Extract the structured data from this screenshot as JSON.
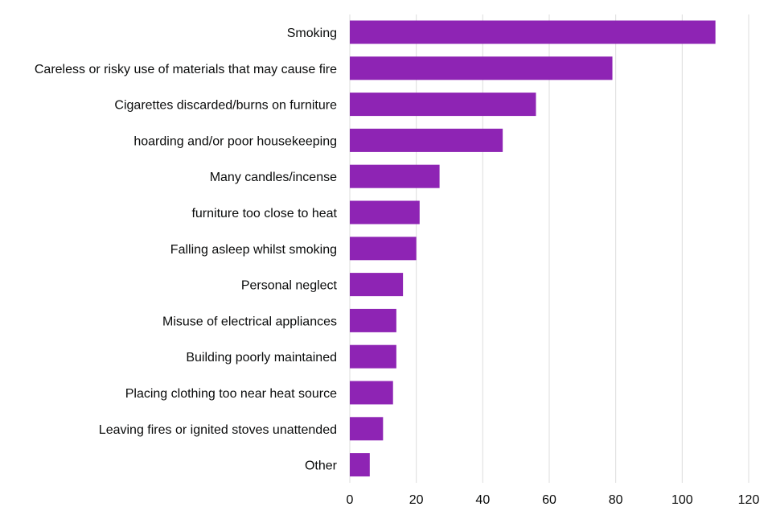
{
  "chart_data": {
    "type": "bar",
    "orientation": "horizontal",
    "title": "",
    "xlabel": "",
    "ylabel": "",
    "categories": [
      "Smoking",
      "Careless or risky use of materials that may cause fire",
      "Cigarettes discarded/burns on furniture",
      "hoarding and/or poor housekeeping",
      "Many candles/incense",
      "furniture too close to heat",
      "Falling asleep whilst smoking",
      "Personal neglect",
      "Misuse of electrical appliances",
      "Building poorly maintained",
      "Placing clothing too near heat source",
      "Leaving fires or ignited stoves unattended",
      "Other"
    ],
    "values": [
      110,
      79,
      56,
      46,
      27,
      21,
      20,
      16,
      14,
      14,
      13,
      10,
      6
    ],
    "xlim": [
      0,
      120
    ],
    "xticks": [
      0,
      20,
      40,
      60,
      80,
      100,
      120
    ],
    "grid": "vertical",
    "legend": "none",
    "colors": {
      "bar": "#8e24b4",
      "grid": "#dcdcdc",
      "text": "#0b0c0c"
    }
  }
}
